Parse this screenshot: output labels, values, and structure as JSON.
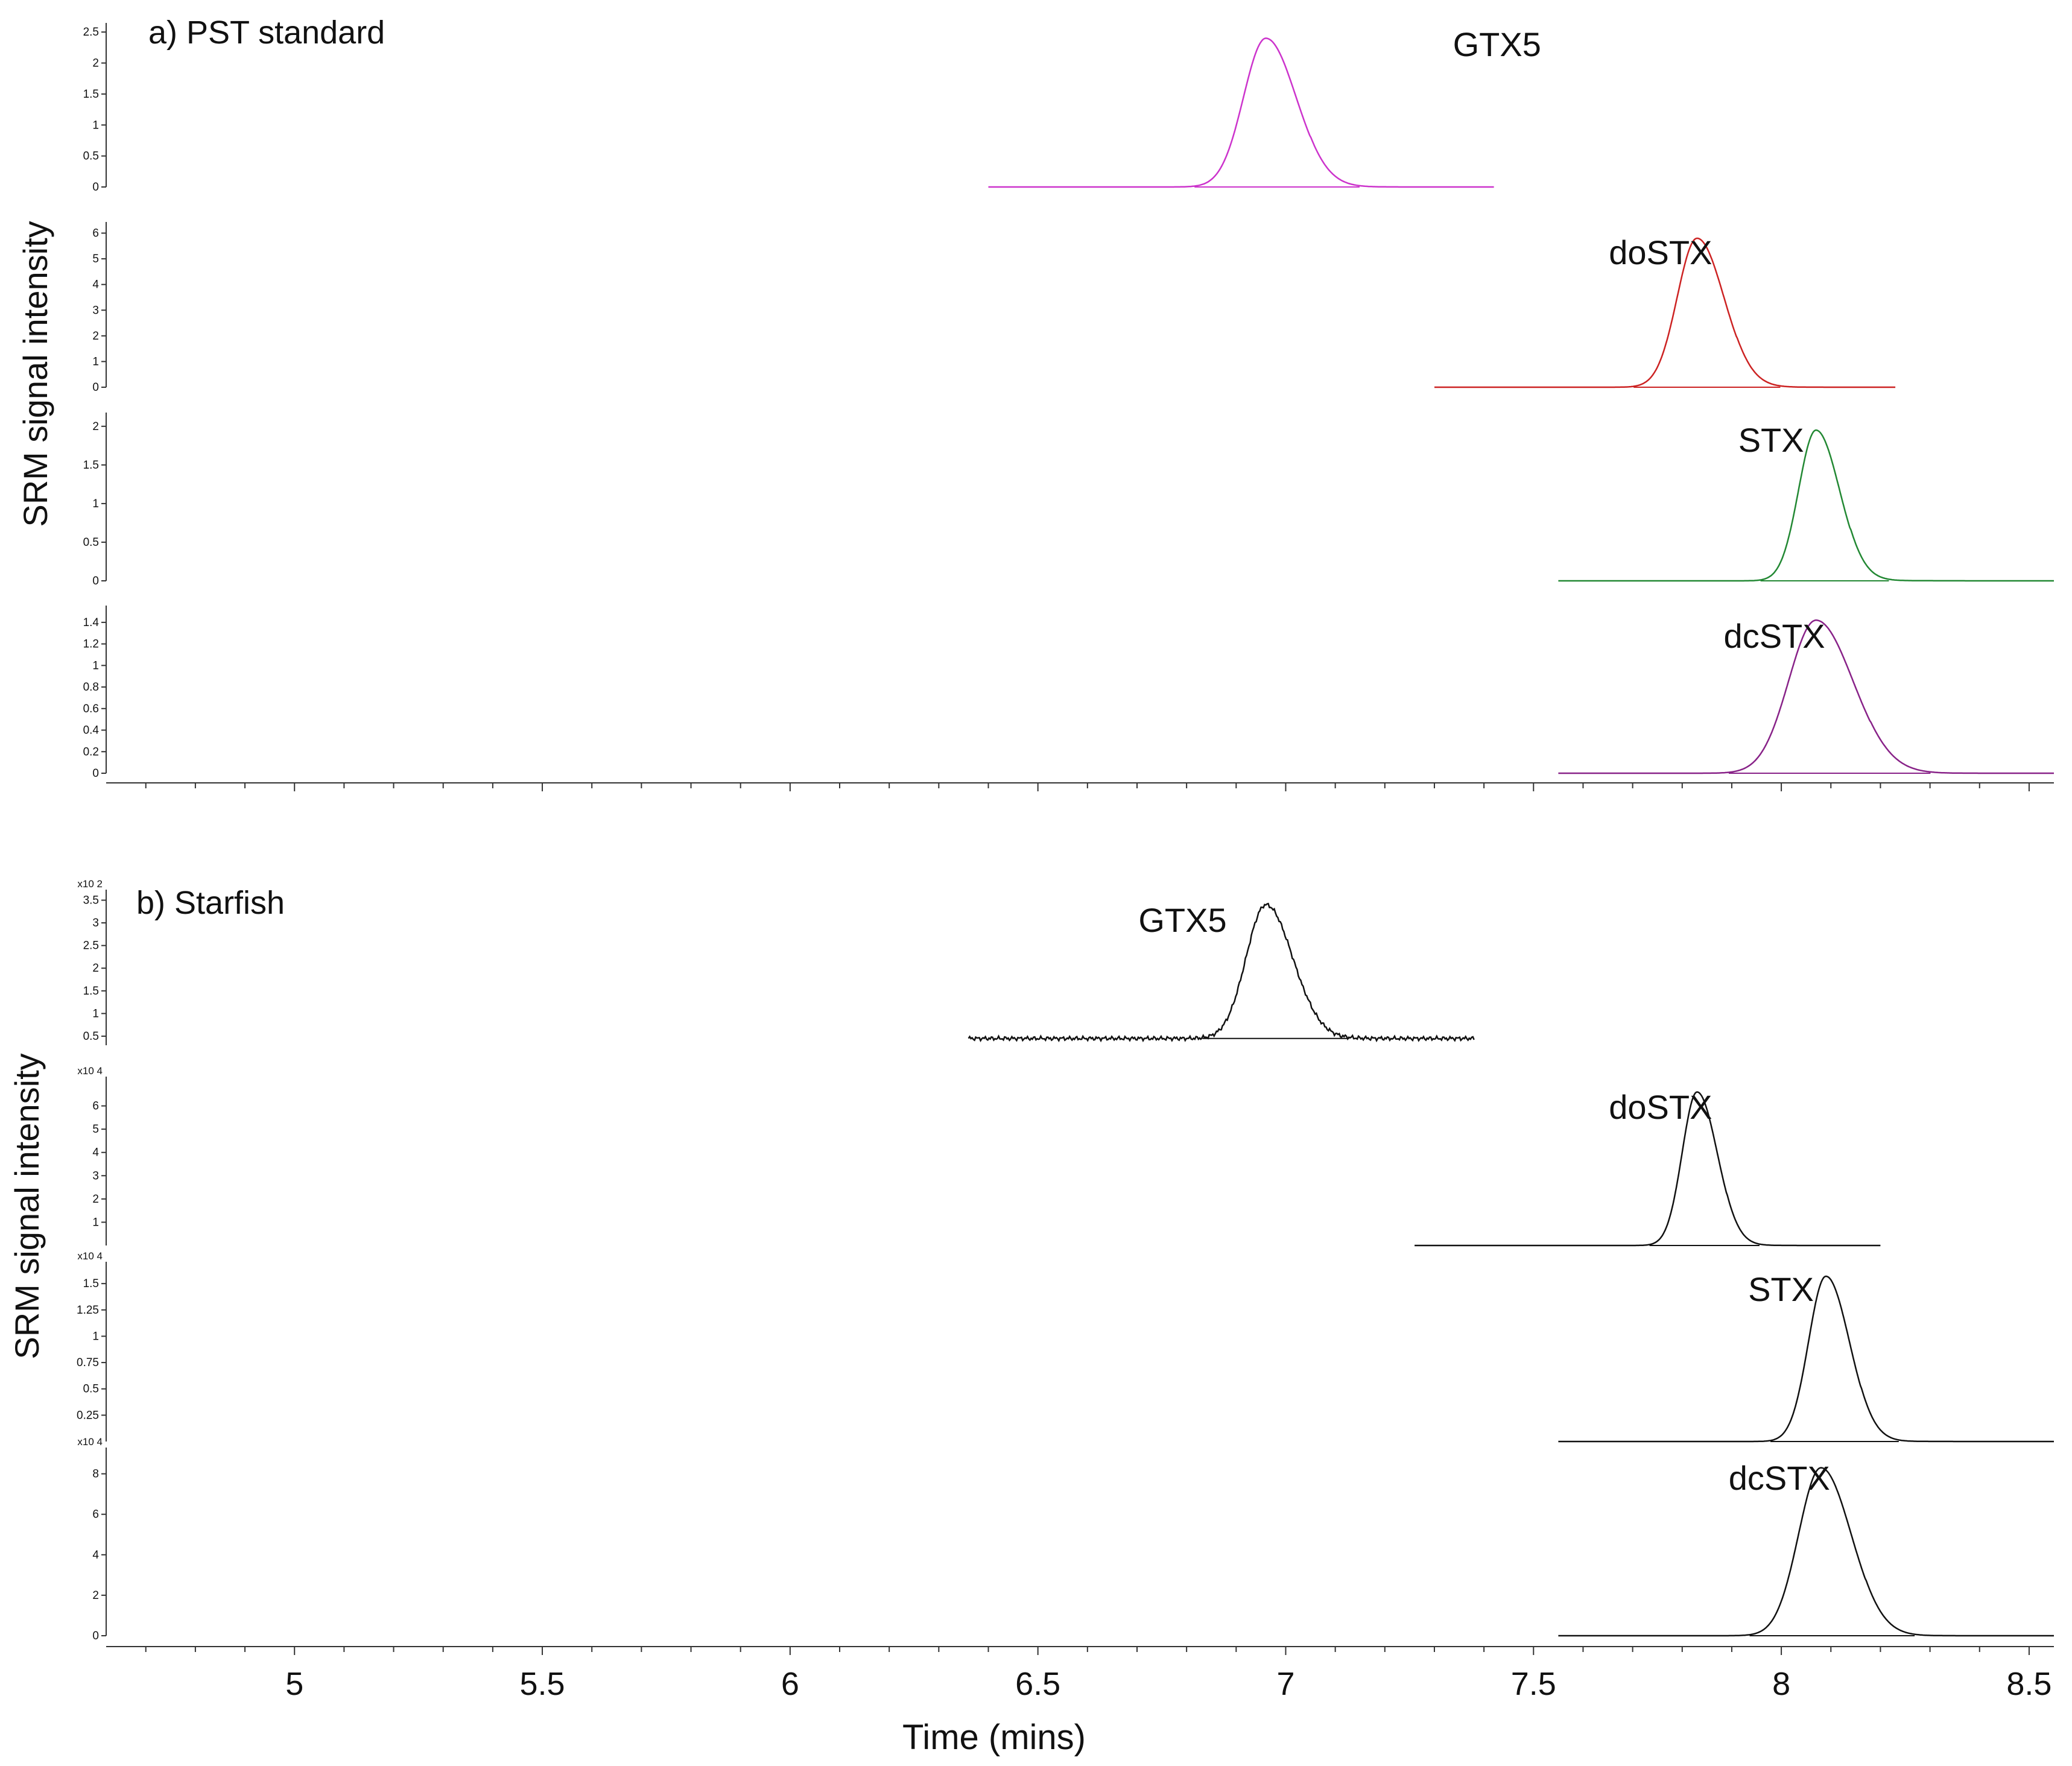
{
  "chart_data": [
    {
      "type": "line",
      "title": "a) PST standard",
      "ylabel": "SRM signal intensity",
      "xlim": [
        4.62,
        8.55
      ],
      "traces": [
        {
          "name": "GTX5",
          "color": "#cc33cc",
          "x_range": [
            6.4,
            7.42
          ],
          "peak_x": 6.96,
          "width": 0.045,
          "tail": 0.05,
          "baseline": 0,
          "peak": 2.4,
          "ylim": [
            0,
            2.55
          ],
          "ticks": [
            0,
            0.5,
            1,
            1.5,
            2,
            2.5
          ],
          "tick_labels": [
            "0",
            "0.5",
            "1",
            "1.5",
            "2",
            "2.5"
          ],
          "multiplier": "",
          "noise": 0
        },
        {
          "name": "doSTX",
          "color": "#cc2222",
          "x_range": [
            7.3,
            8.23
          ],
          "peak_x": 7.83,
          "width": 0.04,
          "tail": 0.05,
          "baseline": 0,
          "peak": 5.8,
          "ylim": [
            0,
            6.2
          ],
          "ticks": [
            0,
            1,
            2,
            3,
            4,
            5,
            6
          ],
          "tick_labels": [
            "0",
            "1",
            "2",
            "3",
            "4",
            "5",
            "6"
          ],
          "multiplier": "",
          "noise": 0
        },
        {
          "name": "STX",
          "color": "#228833",
          "x_range": [
            7.55,
            8.55
          ],
          "peak_x": 8.07,
          "width": 0.035,
          "tail": 0.06,
          "baseline": 0,
          "peak": 1.95,
          "ylim": [
            0,
            2.1
          ],
          "ticks": [
            0,
            0.5,
            1,
            1.5,
            2
          ],
          "tick_labels": [
            "0",
            "0.5",
            "1",
            "1.5",
            "2"
          ],
          "multiplier": "",
          "noise": 0
        },
        {
          "name": "dcSTX",
          "color": "#882288",
          "x_range": [
            7.55,
            8.55
          ],
          "peak_x": 8.07,
          "width": 0.055,
          "tail": 0.06,
          "baseline": 0,
          "peak": 1.42,
          "ylim": [
            0,
            1.5
          ],
          "ticks": [
            0,
            0.2,
            0.4,
            0.6,
            0.8,
            1,
            1.2,
            1.4
          ],
          "tick_labels": [
            "0",
            "0.2",
            "0.4",
            "0.6",
            "0.8",
            "1",
            "1.2",
            "1.4"
          ],
          "multiplier": "",
          "noise": 0
        }
      ]
    },
    {
      "type": "line",
      "title": "b) Starfish",
      "ylabel": "SRM signal intensity",
      "xlabel": "Time (mins)",
      "xlim": [
        4.62,
        8.55
      ],
      "x_ticks": [
        5,
        5.5,
        6,
        6.5,
        7,
        7.5,
        8,
        8.5
      ],
      "x_tick_labels": [
        "5",
        "5.5",
        "6",
        "6.5",
        "7",
        "7.5",
        "8",
        "8.5"
      ],
      "traces": [
        {
          "name": "GTX5",
          "color": "#111111",
          "x_range": [
            6.36,
            7.38
          ],
          "peak_x": 6.96,
          "width": 0.04,
          "tail": 0.05,
          "baseline": 0.45,
          "peak": 3.4,
          "ylim": [
            0.3,
            3.6
          ],
          "ticks": [
            0.5,
            1,
            1.5,
            2,
            2.5,
            3,
            3.5
          ],
          "tick_labels": [
            "0.5",
            "1",
            "1.5",
            "2",
            "2.5",
            "3",
            "3.5"
          ],
          "multiplier": "x10 2",
          "noise": 0.015
        },
        {
          "name": "doSTX",
          "color": "#111111",
          "x_range": [
            7.26,
            8.2
          ],
          "peak_x": 7.83,
          "width": 0.03,
          "tail": 0.04,
          "baseline": 0,
          "peak": 6.6,
          "ylim": [
            0,
            7
          ],
          "ticks": [
            1,
            2,
            3,
            4,
            5,
            6
          ],
          "tick_labels": [
            "1",
            "2",
            "3",
            "4",
            "5",
            "6"
          ],
          "multiplier": "x10 4",
          "noise": 0
        },
        {
          "name": "STX",
          "color": "#111111",
          "x_range": [
            7.55,
            8.55
          ],
          "peak_x": 8.09,
          "width": 0.035,
          "tail": 0.05,
          "baseline": 0,
          "peak": 1.57,
          "ylim": [
            0,
            1.65
          ],
          "ticks": [
            0.25,
            0.5,
            0.75,
            1,
            1.25,
            1.5
          ],
          "tick_labels": [
            "0.25",
            "0.5",
            "0.75",
            "1",
            "1.25",
            "1.5"
          ],
          "multiplier": "x10 4",
          "noise": 0
        },
        {
          "name": "dcSTX",
          "color": "#111111",
          "x_range": [
            7.55,
            8.55
          ],
          "peak_x": 8.08,
          "width": 0.045,
          "tail": 0.05,
          "baseline": 0,
          "peak": 8.3,
          "ylim": [
            0,
            9
          ],
          "ticks": [
            0,
            2,
            4,
            6,
            8
          ],
          "tick_labels": [
            "0",
            "2",
            "4",
            "6",
            "8"
          ],
          "multiplier": "x10 4",
          "noise": 0
        }
      ]
    }
  ]
}
